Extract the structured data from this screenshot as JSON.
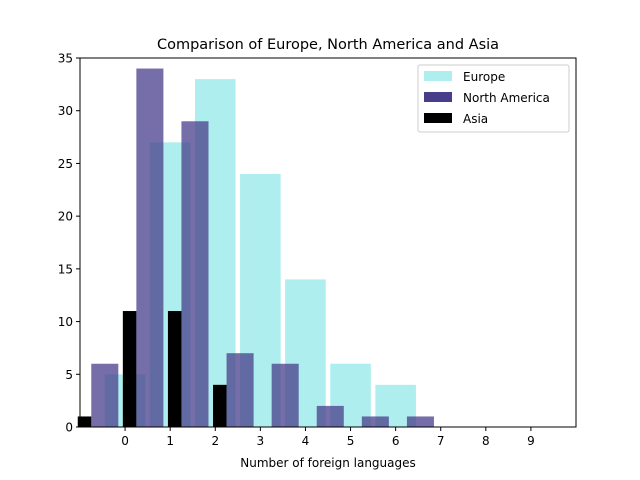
{
  "chart_data": {
    "type": "bar",
    "title": "Comparison of Europe, North America and Asia",
    "xlabel": "Number of foreign languages",
    "ylabel": "",
    "categories": [
      0,
      1,
      2,
      3,
      4,
      5,
      6,
      7,
      8,
      9
    ],
    "xlim": [
      -1,
      10
    ],
    "ylim": [
      0,
      35
    ],
    "yticks": [
      0,
      5,
      10,
      15,
      20,
      25,
      30,
      35
    ],
    "grid": false,
    "legend_position": "upper-right",
    "series": [
      {
        "name": "Europe",
        "x": [
          0,
          1,
          2,
          3,
          4,
          5,
          6
        ],
        "values": [
          5,
          27,
          33,
          24,
          14,
          6,
          4
        ],
        "color": "#afeeee",
        "opacity": 1.0,
        "bar_width": 0.9,
        "offset": 0.0
      },
      {
        "name": "North America",
        "x": [
          0,
          1,
          2,
          3,
          4,
          5,
          6,
          7
        ],
        "values": [
          6,
          34,
          29,
          7,
          6,
          2,
          1,
          1
        ],
        "color": "#483d8b",
        "opacity": 0.75,
        "bar_width": 0.6,
        "offset": -0.45
      },
      {
        "name": "Asia",
        "x": [
          0,
          1,
          2,
          3
        ],
        "values": [
          1,
          11,
          11,
          4
        ],
        "color": "#000000",
        "opacity": 1.0,
        "bar_width": 0.3,
        "offset": -0.9
      }
    ]
  }
}
